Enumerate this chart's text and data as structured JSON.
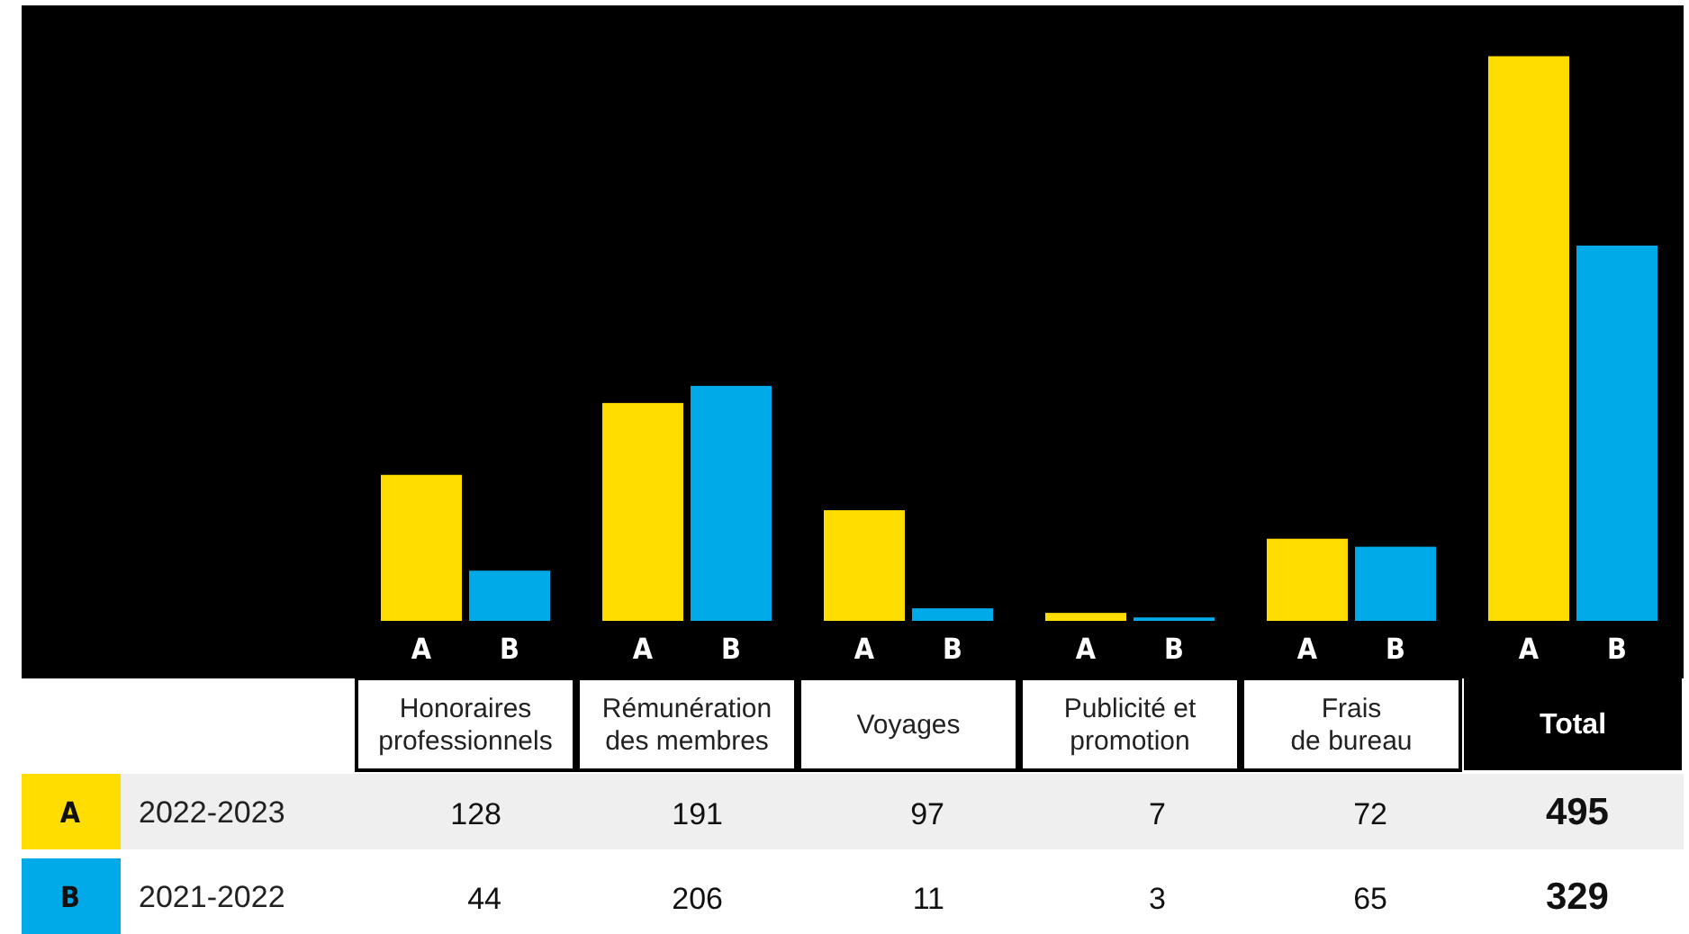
{
  "chart_data": {
    "type": "bar",
    "categories": [
      "Honoraires\nprofessionnels",
      "Rémunération\ndes membres",
      "Voyages",
      "Publicité et\npromotion",
      "Frais\nde bureau",
      "Total"
    ],
    "series": [
      {
        "name": "A",
        "color": "#ffdd00",
        "values": [
          128,
          191,
          97,
          7,
          72,
          495
        ]
      },
      {
        "name": "B",
        "color": "#00a9e8",
        "values": [
          44,
          206,
          11,
          3,
          65,
          329
        ]
      }
    ],
    "annotations": [
      "2022-2023",
      "2021-2022"
    ],
    "data_labels": true,
    "legend": "bottom left"
  }
}
